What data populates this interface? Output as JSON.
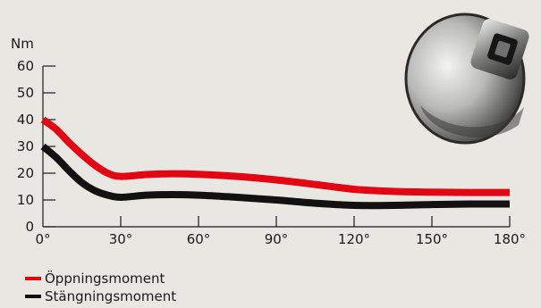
{
  "chart_data": {
    "type": "line",
    "ylabel": "Nm",
    "xlim": [
      0,
      180
    ],
    "ylim": [
      0,
      60
    ],
    "x_ticks": [
      {
        "value": 0,
        "label": "0°"
      },
      {
        "value": 30,
        "label": "30°"
      },
      {
        "value": 60,
        "label": "60°"
      },
      {
        "value": 90,
        "label": "90°"
      },
      {
        "value": 120,
        "label": "120°"
      },
      {
        "value": 150,
        "label": "150°"
      },
      {
        "value": 180,
        "label": "180°"
      }
    ],
    "y_ticks": [
      {
        "value": 0,
        "label": "0"
      },
      {
        "value": 10,
        "label": "10"
      },
      {
        "value": 20,
        "label": "20"
      },
      {
        "value": 30,
        "label": "30"
      },
      {
        "value": 40,
        "label": "40"
      },
      {
        "value": 50,
        "label": "50"
      },
      {
        "value": 60,
        "label": "60"
      }
    ],
    "series": [
      {
        "name": "Öppningsmoment",
        "color": "#e30613",
        "x": [
          0,
          5,
          10,
          15,
          20,
          25,
          30,
          40,
          50,
          60,
          75,
          90,
          105,
          120,
          135,
          150,
          165,
          180
        ],
        "y": [
          40,
          36.5,
          31.5,
          27,
          23,
          20,
          18.8,
          19.5,
          19.8,
          19.6,
          18.8,
          17.5,
          15.8,
          14,
          13.2,
          12.9,
          12.8,
          12.8
        ]
      },
      {
        "name": "Stängningsmoment",
        "color": "#111111",
        "x": [
          0,
          5,
          10,
          15,
          20,
          25,
          30,
          40,
          50,
          60,
          75,
          90,
          105,
          120,
          135,
          150,
          165,
          180
        ],
        "y": [
          30,
          26,
          21,
          16.5,
          13.5,
          11.8,
          11,
          11.8,
          12,
          11.8,
          11,
          10,
          8.8,
          8,
          8,
          8.3,
          8.5,
          8.5
        ]
      }
    ],
    "legend_position": "bottom-left",
    "grid": false
  }
}
